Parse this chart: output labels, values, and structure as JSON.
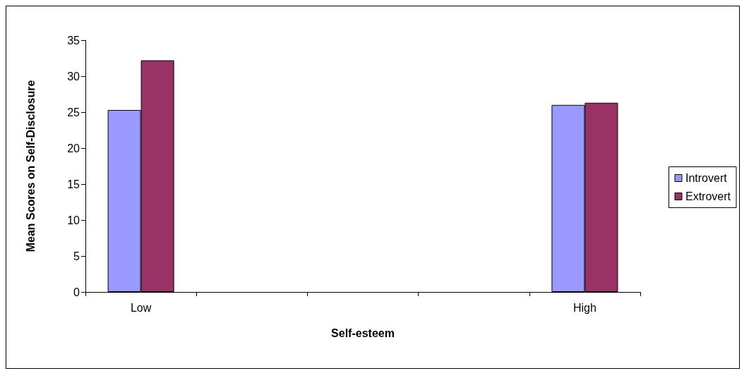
{
  "chart_data": {
    "type": "bar",
    "xlabel": "Self-esteem",
    "ylabel": "Mean Scores on Self-Disclosure",
    "categories": [
      "Low",
      null,
      null,
      null,
      "High"
    ],
    "series": [
      {
        "name": "Introvert",
        "color": "#9999ff",
        "values": [
          25.3,
          null,
          null,
          null,
          26.0
        ]
      },
      {
        "name": "Extrovert",
        "color": "#993366",
        "values": [
          32.2,
          null,
          null,
          null,
          26.3
        ]
      }
    ],
    "ylim": [
      0,
      35
    ],
    "yticks": [
      0,
      5,
      10,
      15,
      20,
      25,
      30,
      35
    ],
    "grid": false,
    "legend": "right"
  }
}
